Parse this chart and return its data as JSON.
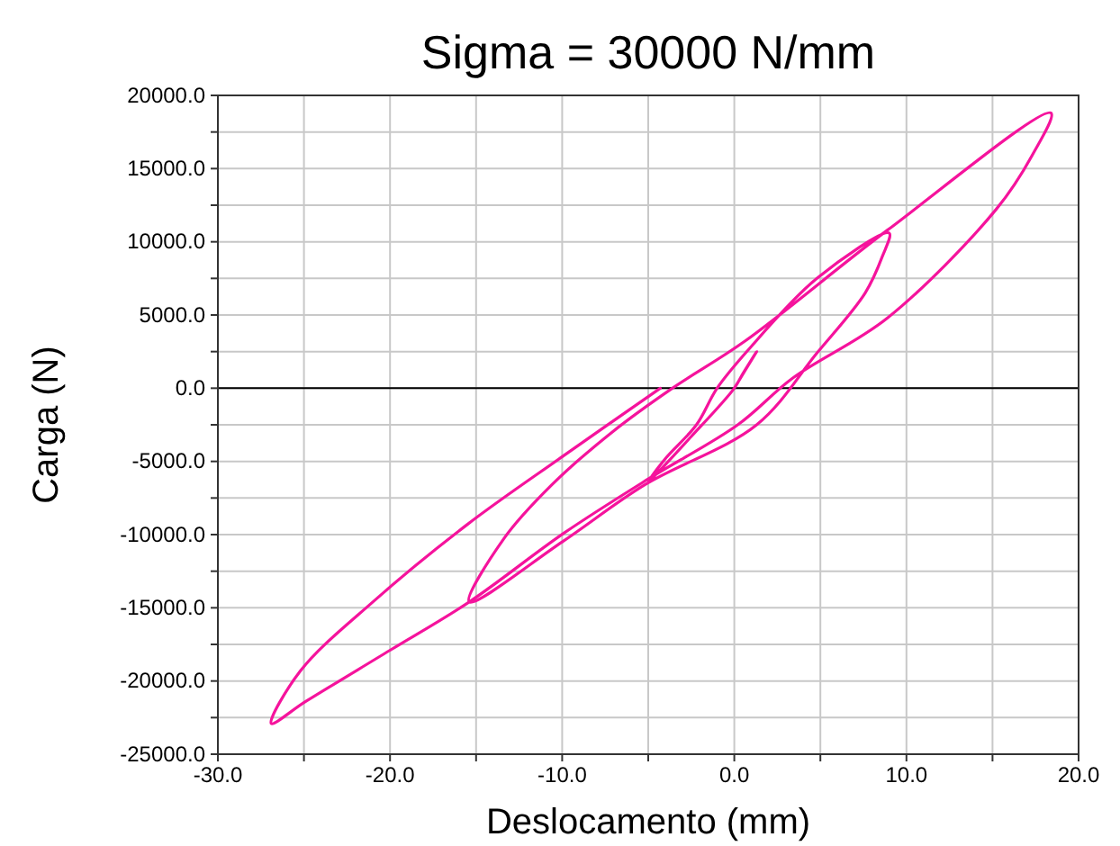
{
  "chart_data": {
    "type": "line",
    "title": "Sigma = 30000 N/mm",
    "xlabel": "Deslocamento (mm)",
    "ylabel": "Carga (N)",
    "xlim": [
      -30,
      20
    ],
    "ylim": [
      -25000,
      20000
    ],
    "xticks": [
      {
        "value": -30,
        "label": "-30.0"
      },
      {
        "value": -25,
        "label": null
      },
      {
        "value": -20,
        "label": "-20.0"
      },
      {
        "value": -15,
        "label": null
      },
      {
        "value": -10,
        "label": "-10.0"
      },
      {
        "value": -5,
        "label": null
      },
      {
        "value": 0,
        "label": "0.0"
      },
      {
        "value": 5,
        "label": null
      },
      {
        "value": 10,
        "label": "10.0"
      },
      {
        "value": 15,
        "label": null
      },
      {
        "value": 20,
        "label": "20.0"
      }
    ],
    "yticks": [
      {
        "value": -25000,
        "label": "-25000.0"
      },
      {
        "value": -22500,
        "label": null
      },
      {
        "value": -20000,
        "label": "-20000.0"
      },
      {
        "value": -17500,
        "label": null
      },
      {
        "value": -15000,
        "label": "-15000.0"
      },
      {
        "value": -12500,
        "label": null
      },
      {
        "value": -10000,
        "label": "-10000.0"
      },
      {
        "value": -7500,
        "label": null
      },
      {
        "value": -5000,
        "label": "-5000.0"
      },
      {
        "value": -2500,
        "label": null
      },
      {
        "value": 0,
        "label": "0.0"
      },
      {
        "value": 2500,
        "label": null
      },
      {
        "value": 5000,
        "label": "5000.0"
      },
      {
        "value": 7500,
        "label": null
      },
      {
        "value": 10000,
        "label": "10000.0"
      },
      {
        "value": 12500,
        "label": null
      },
      {
        "value": 15000,
        "label": "15000.0"
      },
      {
        "value": 17500,
        "label": null
      },
      {
        "value": 20000,
        "label": "20000.0"
      }
    ],
    "grid": true,
    "marker": "none",
    "line_style": "solid",
    "ref_lines": [
      {
        "axis": "y",
        "value": 0,
        "color": "#000000"
      }
    ],
    "series": [
      {
        "color": "#f5139c",
        "x": [
          0,
          1.3,
          0.5,
          0,
          -2.5,
          -5,
          -4,
          -2.2,
          -1,
          0.8,
          4.8,
          9,
          8.6,
          7.6,
          4.8,
          1.3,
          -5.2,
          -10,
          -15.4,
          -13.4,
          -10.6,
          -7.1,
          -3.6,
          0.6,
          8.9,
          18.4,
          17.3,
          15.2,
          8.9,
          3.4,
          0.2,
          -5,
          -9.9,
          -15.4,
          -20,
          -24.9,
          -26.9,
          -25.2,
          -21,
          -15.5,
          -9.9,
          -4.3
        ],
        "values": [
          0,
          2500,
          1000,
          0,
          -3300,
          -6400,
          -4800,
          -2500,
          0,
          2600,
          7500,
          10600,
          9000,
          6500,
          2400,
          -2500,
          -6600,
          -10500,
          -14600,
          -10300,
          -6600,
          -3000,
          0,
          3200,
          10800,
          18800,
          15900,
          12200,
          4800,
          700,
          -2500,
          -6200,
          -9900,
          -14600,
          -17900,
          -21400,
          -22900,
          -19300,
          -14600,
          -9300,
          -4600,
          0
        ]
      }
    ]
  }
}
